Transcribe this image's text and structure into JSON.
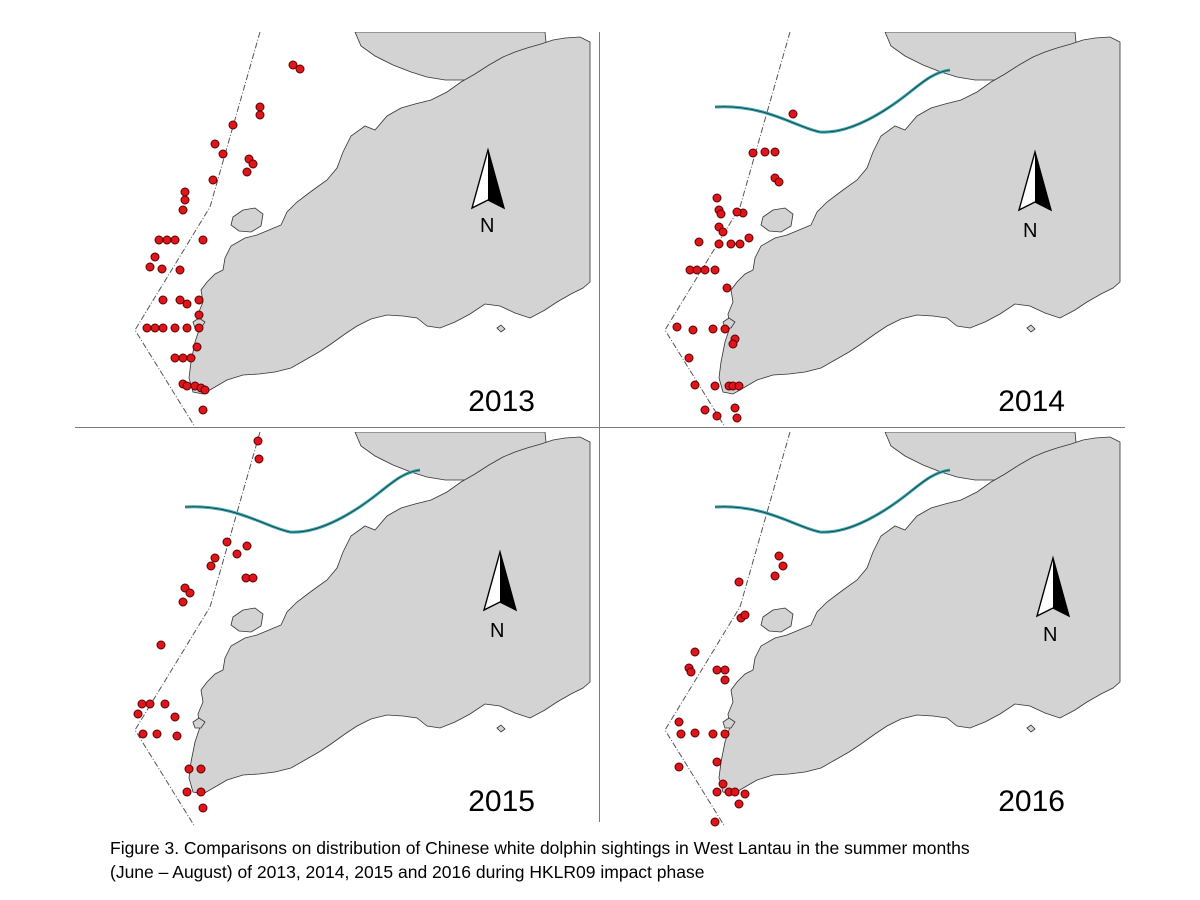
{
  "figure": {
    "caption_line1": "Figure 3.  Comparisons on distribution of Chinese white dolphin sightings in West Lantau in the summer months",
    "caption_line2": "(June – August) of 2013, 2014, 2015 and 2016 during HKLR09 impact phase",
    "north_label": "N",
    "colors": {
      "land": "#d3d3d3",
      "coast": "#333333",
      "sighting": "#e0141b",
      "bridge": "#3aa5b0",
      "boundary": "#555555"
    },
    "panels": [
      {
        "year": "2013",
        "show_bridge": false
      },
      {
        "year": "2014",
        "show_bridge": true
      },
      {
        "year": "2015",
        "show_bridge": true
      },
      {
        "year": "2016",
        "show_bridge": true
      }
    ]
  }
}
